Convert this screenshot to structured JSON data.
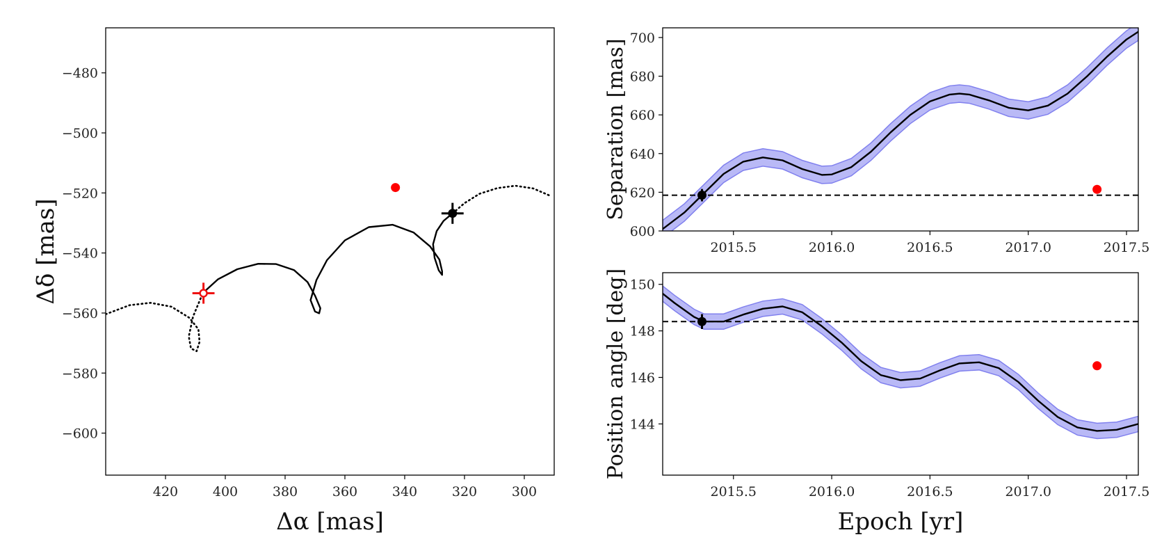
{
  "chart_data": [
    {
      "type": "line",
      "title": "",
      "xlabel": "Δα [mas]",
      "ylabel": "Δδ [mas]",
      "xlim": [
        440,
        290
      ],
      "ylim": [
        -614,
        -465
      ],
      "xticks": [
        420,
        400,
        380,
        360,
        340,
        320,
        300
      ],
      "yticks": [
        -480,
        -500,
        -520,
        -540,
        -560,
        -580,
        -600
      ],
      "xtick_labels": [
        "420",
        "400",
        "380",
        "360",
        "340",
        "320",
        "300"
      ],
      "ytick_labels": [
        "−480",
        "−500",
        "−520",
        "−540",
        "−560",
        "−580",
        "−600"
      ],
      "series": [
        {
          "name": "orbit (dotted, before)",
          "style": "dotted",
          "color": "#000000",
          "x": [
            440,
            432,
            425,
            418,
            412,
            409,
            408.6,
            409.6,
            411.5,
            412.2,
            410.8,
            407.5
          ],
          "y": [
            -560.4,
            -557.4,
            -556.6,
            -557.9,
            -561.6,
            -565.4,
            -569.6,
            -572.7,
            -571.8,
            -567.8,
            -561.2,
            -553.3
          ]
        },
        {
          "name": "orbit (solid)",
          "style": "solid",
          "color": "#000000",
          "x": [
            407.5,
            402.5,
            396,
            389,
            383,
            377,
            372.5,
            370,
            368.2,
            368.6,
            370,
            371.5,
            369.5,
            366,
            360,
            352,
            344,
            337,
            331.5,
            328.4,
            327.5,
            327.5,
            328.6,
            330,
            330.5,
            329.3,
            327,
            324
          ],
          "y": [
            -553.3,
            -548.8,
            -545.4,
            -543.6,
            -543.7,
            -545.7,
            -549.7,
            -554.2,
            -558.4,
            -560.1,
            -559.5,
            -555.7,
            -549,
            -542.4,
            -535.8,
            -531.4,
            -530.6,
            -533.2,
            -537.8,
            -542.2,
            -546.1,
            -547.3,
            -545.8,
            -541.6,
            -537.1,
            -532.7,
            -529.3,
            -526.8
          ]
        },
        {
          "name": "orbit (dotted, after)",
          "style": "dotted",
          "color": "#000000",
          "x": [
            324,
            320,
            315,
            309,
            303,
            297,
            291
          ],
          "y": [
            -526.8,
            -523.4,
            -520.3,
            -518.4,
            -517.6,
            -518.5,
            -521.1
          ]
        }
      ],
      "markers": [
        {
          "name": "black-point",
          "x": 324,
          "y": -526.8,
          "xerr": 3.7,
          "yerr": 3.5,
          "color": "#000000"
        },
        {
          "name": "red-open-point",
          "x": 407.3,
          "y": -553.4,
          "xerr": 3.7,
          "yerr": 3.5,
          "color": "#ee1111"
        },
        {
          "name": "red-point",
          "x": 343.1,
          "y": -518.2,
          "color": "#ff0000"
        }
      ]
    },
    {
      "type": "line",
      "title": "",
      "xlabel": "",
      "ylabel": "Separation [mas]",
      "xlim": [
        2015.14,
        2017.56
      ],
      "ylim": [
        600,
        705
      ],
      "xticks": [
        2015.5,
        2016.0,
        2016.5,
        2017.0,
        2017.5
      ],
      "yticks": [
        600,
        620,
        640,
        660,
        680,
        700
      ],
      "xtick_labels": [
        "2015.5",
        "2016.0",
        "2016.5",
        "2017.0",
        "2017.5"
      ],
      "ytick_labels": [
        "600",
        "620",
        "640",
        "660",
        "680",
        "700"
      ],
      "series": [
        {
          "name": "model",
          "style": "solid",
          "color": "#000000",
          "band": 4.5,
          "band_color": "#8080ee",
          "x": [
            2015.14,
            2015.25,
            2015.34,
            2015.45,
            2015.55,
            2015.65,
            2015.75,
            2015.85,
            2015.95,
            2016.0,
            2016.1,
            2016.2,
            2016.3,
            2016.4,
            2016.5,
            2016.6,
            2016.65,
            2016.7,
            2016.8,
            2016.9,
            2017.0,
            2017.1,
            2017.2,
            2017.3,
            2017.4,
            2017.5,
            2017.56
          ],
          "y": [
            601,
            609.5,
            618.5,
            629.5,
            635.8,
            638,
            636.5,
            632,
            629,
            629.2,
            633,
            641,
            651,
            660,
            667,
            670.5,
            671,
            670.5,
            667.5,
            663.7,
            662.3,
            664.8,
            671,
            680,
            690,
            699,
            703
          ]
        },
        {
          "name": "reference",
          "style": "dashed",
          "color": "#000000",
          "x": [
            2015.14,
            2017.56
          ],
          "y": [
            618.5,
            618.5
          ]
        }
      ],
      "markers": [
        {
          "name": "black-point",
          "x": 2015.34,
          "y": 618.5,
          "yerr": 3.2,
          "color": "#000000"
        },
        {
          "name": "red-point",
          "x": 2017.35,
          "y": 621.5,
          "color": "#ff0000"
        }
      ]
    },
    {
      "type": "line",
      "title": "",
      "xlabel": "Epoch [yr]",
      "ylabel": "Position angle [deg]",
      "xlim": [
        2015.14,
        2017.56
      ],
      "ylim": [
        141.8,
        150.5
      ],
      "xticks": [
        2015.5,
        2016.0,
        2016.5,
        2017.0,
        2017.5
      ],
      "yticks": [
        144,
        146,
        148,
        150
      ],
      "xtick_labels": [
        "2015.5",
        "2016.0",
        "2016.5",
        "2017.0",
        "2017.5"
      ],
      "ytick_labels": [
        "144",
        "146",
        "148",
        "150"
      ],
      "series": [
        {
          "name": "model",
          "style": "solid",
          "color": "#000000",
          "band": 0.33,
          "band_color": "#8080ee",
          "x": [
            2015.14,
            2015.2,
            2015.3,
            2015.35,
            2015.45,
            2015.55,
            2015.65,
            2015.75,
            2015.85,
            2015.95,
            2016.05,
            2016.15,
            2016.25,
            2016.35,
            2016.45,
            2016.55,
            2016.65,
            2016.75,
            2016.85,
            2016.95,
            2017.05,
            2017.15,
            2017.25,
            2017.35,
            2017.45,
            2017.56
          ],
          "y": [
            149.6,
            149.2,
            148.6,
            148.4,
            148.4,
            148.7,
            148.95,
            149.05,
            148.8,
            148.2,
            147.5,
            146.7,
            146.1,
            145.88,
            145.95,
            146.3,
            146.6,
            146.65,
            146.4,
            145.8,
            145.0,
            144.3,
            143.85,
            143.7,
            143.75,
            144.0
          ]
        },
        {
          "name": "reference",
          "style": "dashed",
          "color": "#000000",
          "x": [
            2015.14,
            2017.56
          ],
          "y": [
            148.4,
            148.4
          ]
        }
      ],
      "markers": [
        {
          "name": "black-point",
          "x": 2015.34,
          "y": 148.4,
          "yerr": 0.32,
          "color": "#000000"
        },
        {
          "name": "red-point",
          "x": 2017.35,
          "y": 146.5,
          "color": "#ff0000"
        }
      ]
    }
  ]
}
